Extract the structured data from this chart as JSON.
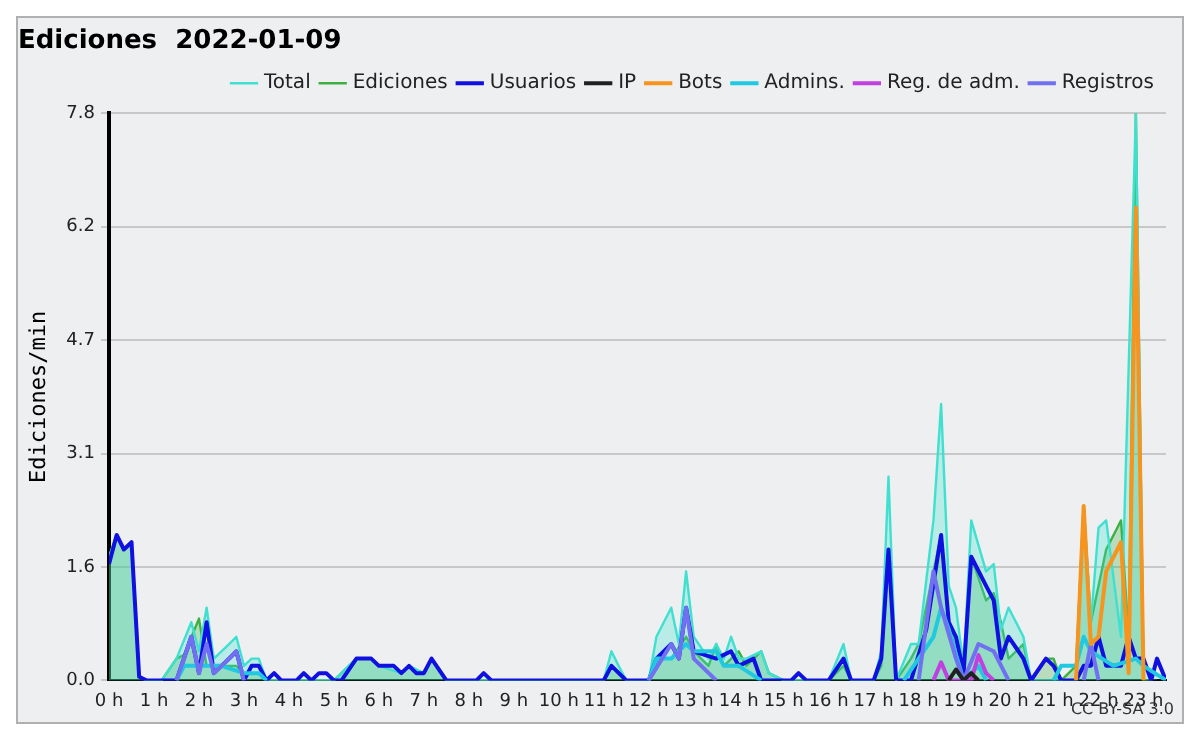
{
  "chart_data": {
    "type": "line",
    "title": "Ediciones  2022-01-09",
    "ylabel": "Ediciones/min",
    "xlim": [
      0,
      23.5
    ],
    "ylim": [
      0,
      7.8
    ],
    "xticks": [
      {
        "value": 0,
        "label": "0 h"
      },
      {
        "value": 1,
        "label": "1 h"
      },
      {
        "value": 2,
        "label": "2 h"
      },
      {
        "value": 3,
        "label": "3 h"
      },
      {
        "value": 4,
        "label": "4 h"
      },
      {
        "value": 5,
        "label": "5 h"
      },
      {
        "value": 6,
        "label": "6 h"
      },
      {
        "value": 7,
        "label": "7 h"
      },
      {
        "value": 8,
        "label": "8 h"
      },
      {
        "value": 9,
        "label": "9 h"
      },
      {
        "value": 10,
        "label": "10 h"
      },
      {
        "value": 11,
        "label": "11 h"
      },
      {
        "value": 12,
        "label": "12 h"
      },
      {
        "value": 13,
        "label": "13 h"
      },
      {
        "value": 14,
        "label": "14 h"
      },
      {
        "value": 15,
        "label": "15 h"
      },
      {
        "value": 16,
        "label": "16 h"
      },
      {
        "value": 17,
        "label": "17 h"
      },
      {
        "value": 18,
        "label": "18 h"
      },
      {
        "value": 19,
        "label": "19 h"
      },
      {
        "value": 20,
        "label": "20 h"
      },
      {
        "value": 21,
        "label": "21 h"
      },
      {
        "value": 22,
        "label": "22 h"
      },
      {
        "value": 23,
        "label": "23 h"
      }
    ],
    "yticks": [
      {
        "value": 0,
        "label": "0.0"
      },
      {
        "value": 1.56,
        "label": "1.6"
      },
      {
        "value": 3.12,
        "label": "3.1"
      },
      {
        "value": 4.68,
        "label": "4.7"
      },
      {
        "value": 6.24,
        "label": "6.2"
      },
      {
        "value": 7.8,
        "label": "7.8"
      }
    ],
    "grid": "y",
    "legend": "top right",
    "marker": "none",
    "line_style": "solid",
    "annotations": [
      "CC BY-SA 3.0"
    ],
    "series": [
      {
        "name": "Total",
        "type": "area",
        "color": "#40e0d0",
        "x": [
          0,
          0.17,
          0.33,
          0.5,
          0.67,
          0.83,
          1.17,
          1.5,
          1.83,
          2,
          2.17,
          2.33,
          2.67,
          2.83,
          3,
          3.17,
          3.33,
          3.5,
          5,
          5.5,
          5.83,
          6,
          6.5,
          6.67,
          7,
          7.17,
          7.5,
          11,
          11.17,
          11.33,
          11.5,
          12,
          12.17,
          12.5,
          12.67,
          12.83,
          13,
          13.33,
          13.5,
          13.67,
          13.83,
          14,
          14.17,
          14.5,
          14.67,
          15,
          16,
          16.33,
          16.5,
          17,
          17.17,
          17.33,
          17.5,
          17.83,
          18,
          18.33,
          18.5,
          18.67,
          18.83,
          19,
          19.17,
          19.5,
          19.67,
          19.83,
          20,
          20.33,
          20.5,
          21.5,
          21.67,
          21.83,
          22,
          22.17,
          22.5,
          22.83,
          23,
          23.17,
          23.3
        ],
        "values": [
          1.7,
          2.0,
          1.8,
          1.9,
          0.05,
          0,
          0,
          0.3,
          0.8,
          0.4,
          1.0,
          0.3,
          0.5,
          0.6,
          0.2,
          0.3,
          0.3,
          0,
          0,
          0.3,
          0.3,
          0.2,
          0.1,
          0.2,
          0.1,
          0.3,
          0,
          0,
          0.4,
          0.2,
          0,
          0,
          0.6,
          1.0,
          0.5,
          1.5,
          0.6,
          0.3,
          0.5,
          0.3,
          0.6,
          0.3,
          0.3,
          0.4,
          0.1,
          0,
          0,
          0.5,
          0,
          0,
          0.4,
          2.8,
          0,
          0.5,
          0.5,
          2.2,
          3.8,
          1.3,
          1.0,
          0.2,
          2.2,
          1.5,
          1.6,
          0.7,
          1.0,
          0.6,
          0,
          0,
          2.4,
          0.8,
          2.1,
          2.2,
          0.6,
          7.8,
          0.2,
          0.1,
          0.1
        ]
      },
      {
        "name": "Ediciones",
        "type": "area",
        "color": "#3cb043",
        "x": [
          0,
          0.17,
          0.33,
          0.5,
          0.67,
          0.83,
          1.17,
          1.5,
          1.67,
          2,
          2.17,
          2.5,
          2.83,
          3,
          3.33,
          3.5,
          5,
          5.5,
          5.83,
          6,
          6.33,
          6.5,
          6.67,
          6.83,
          7,
          7.17,
          7.5,
          11,
          11.17,
          11.5,
          12,
          12.17,
          12.5,
          12.83,
          13,
          13.33,
          13.5,
          13.67,
          14,
          14.17,
          14.5,
          14.67,
          15,
          16,
          16.33,
          16.5,
          17,
          17.17,
          17.33,
          17.5,
          17.83,
          18,
          18.33,
          18.5,
          18.67,
          18.83,
          19,
          19.17,
          19.5,
          19.67,
          19.83,
          20,
          20.33,
          20.5,
          20.83,
          21,
          21.17,
          21.5,
          21.67,
          21.83,
          22.17,
          22.5,
          22.67,
          22.83,
          23,
          23.2
        ],
        "values": [
          1.7,
          2.0,
          1.8,
          1.9,
          0.05,
          0,
          0,
          0.3,
          0.35,
          0.85,
          0.2,
          0.2,
          0.2,
          0.1,
          0.1,
          0,
          0,
          0.3,
          0.3,
          0.2,
          0.2,
          0.1,
          0.2,
          0.1,
          0.1,
          0.3,
          0,
          0,
          0.2,
          0,
          0,
          0.3,
          0.3,
          0.6,
          0.4,
          0.2,
          0.5,
          0.2,
          0.4,
          0.2,
          0.4,
          0.1,
          0,
          0,
          0.2,
          0,
          0,
          0.2,
          1.8,
          0,
          0.3,
          0.5,
          1.5,
          2.0,
          0.8,
          0.4,
          0.1,
          1.7,
          1.1,
          1.2,
          0.8,
          0.3,
          0.5,
          0,
          0.3,
          0.3,
          0,
          0.2,
          2.4,
          0.8,
          1.8,
          2.2,
          0.6,
          7.8,
          0,
          0
        ]
      },
      {
        "name": "Usuarios",
        "type": "line",
        "color": "#1010e0",
        "x": [
          0,
          0.17,
          0.33,
          0.5,
          0.67,
          0.83,
          1.5,
          1.83,
          2,
          2.17,
          2.33,
          2.67,
          2.83,
          3,
          3.17,
          3.33,
          3.5,
          3.67,
          3.83,
          4.17,
          4.33,
          4.5,
          4.67,
          4.83,
          5,
          5.17,
          5.5,
          5.83,
          6,
          6.33,
          6.5,
          6.67,
          6.83,
          7,
          7.17,
          7.5,
          8.17,
          8.33,
          8.5,
          11,
          11.17,
          11.5,
          12,
          12.17,
          12.5,
          12.67,
          12.83,
          13,
          13.5,
          13.83,
          14,
          14.33,
          14.5,
          15.17,
          15.33,
          15.5,
          16,
          16.33,
          16.5,
          17,
          17.17,
          17.33,
          17.5,
          17.83,
          18.17,
          18.5,
          18.67,
          18.83,
          19,
          19.17,
          19.5,
          19.67,
          19.83,
          20,
          20.33,
          20.5,
          20.83,
          21,
          21.17,
          21.5,
          21.67,
          21.83,
          22,
          22.17,
          22.5,
          22.67,
          22.83,
          23,
          23.17,
          23.3,
          23.5
        ],
        "values": [
          1.6,
          2.0,
          1.8,
          1.9,
          0.05,
          0,
          0,
          0.6,
          0.1,
          0.8,
          0.1,
          0.3,
          0.4,
          0,
          0.2,
          0.2,
          0,
          0.1,
          0,
          0,
          0.1,
          0,
          0.1,
          0.1,
          0,
          0,
          0.3,
          0.3,
          0.2,
          0.2,
          0.1,
          0.2,
          0.1,
          0.1,
          0.3,
          0,
          0,
          0.1,
          0,
          0,
          0.2,
          0,
          0,
          0.3,
          0.5,
          0.3,
          1.0,
          0.4,
          0.3,
          0.4,
          0.2,
          0.3,
          0,
          0,
          0.1,
          0,
          0,
          0.3,
          0,
          0,
          0.3,
          1.8,
          0,
          0,
          0.7,
          2.0,
          0.8,
          0.6,
          0.1,
          1.7,
          1.3,
          1.1,
          0.3,
          0.6,
          0.3,
          0,
          0.3,
          0.2,
          0,
          0,
          0.2,
          0.2,
          0.6,
          0.2,
          0.2,
          0.6,
          0.3,
          0.3,
          0,
          0.3,
          0
        ]
      },
      {
        "name": "IP",
        "type": "line",
        "color": "#202020",
        "x": [
          18.67,
          18.83,
          19,
          19.17,
          19.33
        ],
        "values": [
          0,
          0.15,
          0,
          0.1,
          0
        ]
      },
      {
        "name": "Bots",
        "type": "line",
        "color": "#f7941d",
        "x": [
          21.5,
          21.67,
          21.83,
          22,
          22.17,
          22.5,
          22.67,
          22.83,
          23
        ],
        "values": [
          0,
          2.4,
          0.5,
          0.6,
          1.5,
          1.9,
          0.1,
          6.5,
          0
        ]
      },
      {
        "name": "Admins.",
        "type": "line",
        "color": "#20c8e0",
        "x": [
          1.5,
          1.67,
          2,
          2.17,
          2.33,
          2.5,
          3,
          3.33,
          3.5,
          8,
          12,
          12.17,
          12.5,
          12.83,
          13,
          13.5,
          13.67,
          14,
          14.5,
          16,
          17.67,
          18,
          18.33,
          18.5,
          18.67,
          19,
          19.33,
          19.5,
          20,
          21,
          21.17,
          21.5,
          21.67,
          21.83,
          22.33,
          22.83,
          23,
          23.5
        ],
        "values": [
          0,
          0.2,
          0.2,
          0.2,
          0.2,
          0.2,
          0.1,
          0.1,
          0,
          null,
          0,
          0.3,
          0.3,
          0.5,
          0.4,
          0.4,
          0.2,
          0.2,
          0,
          null,
          0,
          0.3,
          0.6,
          1.0,
          0.7,
          0,
          0.2,
          0,
          null,
          0,
          0.2,
          0.2,
          0.6,
          0.4,
          0.2,
          0.3,
          0.2,
          0
        ]
      },
      {
        "name": "Reg. de adm.",
        "type": "line",
        "color": "#c040e0",
        "x": [
          18.33,
          18.5,
          18.67,
          19.17,
          19.33,
          19.5,
          19.67
        ],
        "values": [
          0,
          0.25,
          0,
          0,
          0.35,
          0.1,
          0
        ]
      },
      {
        "name": "Registros",
        "type": "line",
        "color": "#7070f0",
        "x": [
          1.5,
          1.83,
          2,
          2.17,
          2.33,
          2.67,
          2.83,
          3,
          8,
          12,
          12.5,
          12.67,
          12.83,
          13,
          13.5,
          16,
          18,
          18.33,
          18.5,
          18.83,
          19,
          19.33,
          19.67,
          20,
          21,
          21.67,
          21.83,
          22
        ],
        "values": [
          0,
          0.6,
          0.1,
          0.5,
          0.1,
          0.3,
          0.4,
          0,
          null,
          0,
          0.5,
          0.3,
          1.0,
          0.3,
          0,
          null,
          0,
          1.5,
          1.0,
          0.3,
          0,
          0.5,
          0.4,
          0,
          null,
          0,
          0.5,
          0
        ]
      }
    ]
  }
}
